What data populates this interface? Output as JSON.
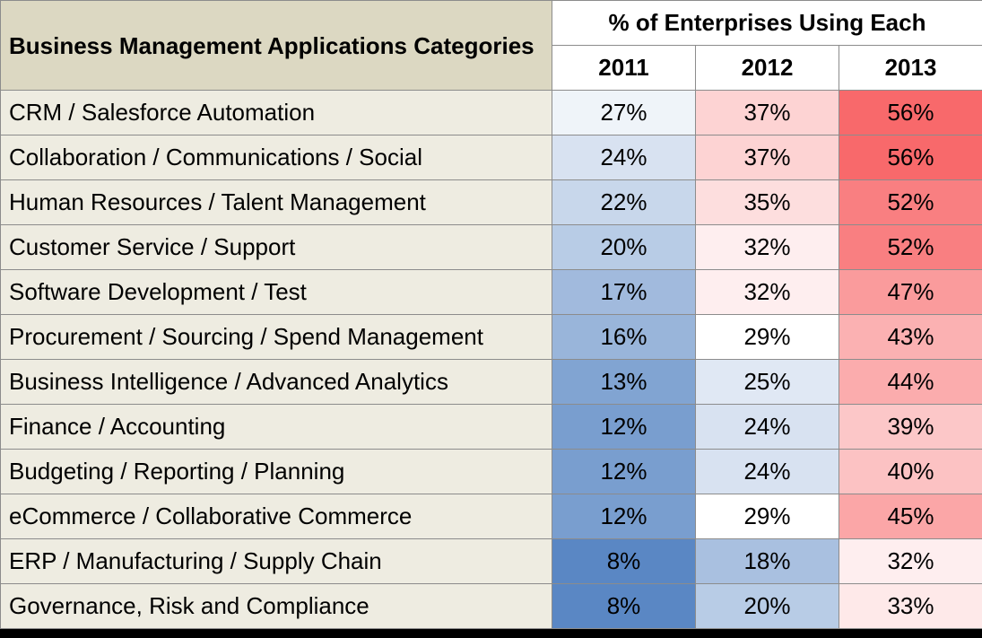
{
  "chart_data": {
    "type": "table",
    "title": "",
    "corner_header": "Business Management Applications Categories",
    "group_header": "% of Enterprises Using Each",
    "columns": [
      "2011",
      "2012",
      "2013"
    ],
    "rows": [
      {
        "category": "CRM / Salesforce Automation",
        "values": [
          "27%",
          "37%",
          "56%"
        ]
      },
      {
        "category": "Collaboration / Communications / Social",
        "values": [
          "24%",
          "37%",
          "56%"
        ]
      },
      {
        "category": "Human Resources / Talent Management",
        "values": [
          "22%",
          "35%",
          "52%"
        ]
      },
      {
        "category": "Customer Service / Support",
        "values": [
          "20%",
          "32%",
          "52%"
        ]
      },
      {
        "category": "Software Development / Test",
        "values": [
          "17%",
          "32%",
          "47%"
        ]
      },
      {
        "category": "Procurement / Sourcing / Spend Management",
        "values": [
          "16%",
          "29%",
          "43%"
        ]
      },
      {
        "category": "Business Intelligence / Advanced Analytics",
        "values": [
          "13%",
          "25%",
          "44%"
        ]
      },
      {
        "category": "Finance / Accounting",
        "values": [
          "12%",
          "24%",
          "39%"
        ]
      },
      {
        "category": "Budgeting / Reporting / Planning",
        "values": [
          "12%",
          "24%",
          "40%"
        ]
      },
      {
        "category": "eCommerce / Collaborative Commerce",
        "values": [
          "12%",
          "29%",
          "45%"
        ]
      },
      {
        "category": "ERP / Manufacturing / Supply Chain",
        "values": [
          "8%",
          "18%",
          "32%"
        ]
      },
      {
        "category": "Governance, Risk and Compliance",
        "values": [
          "8%",
          "20%",
          "33%"
        ]
      }
    ],
    "color_scale": {
      "low": "#5a87c4",
      "mid": "#ffffff",
      "high": "#f8696b",
      "low_value": 8,
      "mid_value": 29,
      "high_value": 56
    }
  }
}
